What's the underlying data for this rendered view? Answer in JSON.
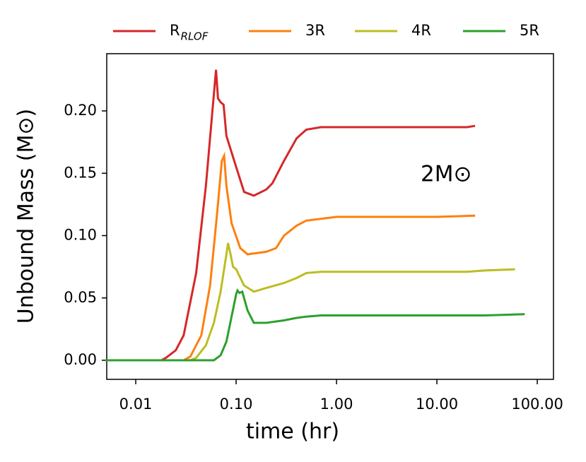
{
  "chart_data": {
    "type": "line",
    "xscale": "log",
    "xlabel": "time (hr)",
    "ylabel": "Unbound Mass (M⊙)",
    "annotation": "2M⊙",
    "xlim": [
      0.00514,
      145
    ],
    "ylim": [
      -0.0153,
      0.2459
    ],
    "xticks": [
      {
        "value": 0.01,
        "label": "0.01"
      },
      {
        "value": 0.1,
        "label": "0.10"
      },
      {
        "value": 1,
        "label": "1.00"
      },
      {
        "value": 10,
        "label": "10.00"
      },
      {
        "value": 100,
        "label": "100.00"
      }
    ],
    "yticks": [
      {
        "value": 0,
        "label": "0.00"
      },
      {
        "value": 0.05,
        "label": "0.05"
      },
      {
        "value": 0.1,
        "label": "0.10"
      },
      {
        "value": 0.15,
        "label": "0.15"
      },
      {
        "value": 0.2,
        "label": "0.20"
      }
    ],
    "series": [
      {
        "name": "R",
        "subscript": "RLOF",
        "color": "#d62728",
        "x": [
          0.005,
          0.018,
          0.02,
          0.025,
          0.03,
          0.04,
          0.05,
          0.058,
          0.063,
          0.066,
          0.07,
          0.075,
          0.08,
          0.1,
          0.12,
          0.15,
          0.2,
          0.23,
          0.3,
          0.4,
          0.5,
          0.7,
          1,
          10,
          20,
          24
        ],
        "values": [
          0,
          0,
          0.002,
          0.008,
          0.02,
          0.07,
          0.14,
          0.2,
          0.233,
          0.21,
          0.207,
          0.205,
          0.18,
          0.155,
          0.135,
          0.132,
          0.137,
          0.142,
          0.16,
          0.178,
          0.185,
          0.187,
          0.187,
          0.187,
          0.187,
          0.188
        ]
      },
      {
        "name": "3R",
        "color": "#ff7f0e",
        "x": [
          0.005,
          0.03,
          0.035,
          0.045,
          0.055,
          0.065,
          0.072,
          0.076,
          0.08,
          0.09,
          0.11,
          0.13,
          0.2,
          0.25,
          0.3,
          0.4,
          0.5,
          1,
          10,
          24
        ],
        "values": [
          0,
          0,
          0.003,
          0.02,
          0.06,
          0.12,
          0.16,
          0.164,
          0.14,
          0.11,
          0.09,
          0.085,
          0.087,
          0.09,
          0.1,
          0.108,
          0.112,
          0.115,
          0.115,
          0.116
        ]
      },
      {
        "name": "4R",
        "color": "#bcbd22",
        "x": [
          0.005,
          0.035,
          0.04,
          0.05,
          0.06,
          0.07,
          0.08,
          0.083,
          0.088,
          0.093,
          0.1,
          0.12,
          0.15,
          0.2,
          0.3,
          0.4,
          0.5,
          0.7,
          1,
          20,
          30,
          60
        ],
        "values": [
          0,
          0,
          0.002,
          0.012,
          0.03,
          0.055,
          0.085,
          0.094,
          0.085,
          0.075,
          0.073,
          0.06,
          0.055,
          0.058,
          0.062,
          0.066,
          0.07,
          0.071,
          0.071,
          0.071,
          0.072,
          0.073
        ]
      },
      {
        "name": "5R",
        "color": "#2ca02c",
        "x": [
          0.005,
          0.06,
          0.07,
          0.08,
          0.09,
          0.1,
          0.103,
          0.108,
          0.115,
          0.13,
          0.15,
          0.2,
          0.3,
          0.4,
          0.5,
          0.7,
          1,
          10,
          30,
          75
        ],
        "values": [
          0,
          0,
          0.004,
          0.015,
          0.035,
          0.053,
          0.056,
          0.054,
          0.055,
          0.04,
          0.03,
          0.03,
          0.032,
          0.034,
          0.035,
          0.036,
          0.036,
          0.036,
          0.036,
          0.037
        ]
      }
    ]
  }
}
